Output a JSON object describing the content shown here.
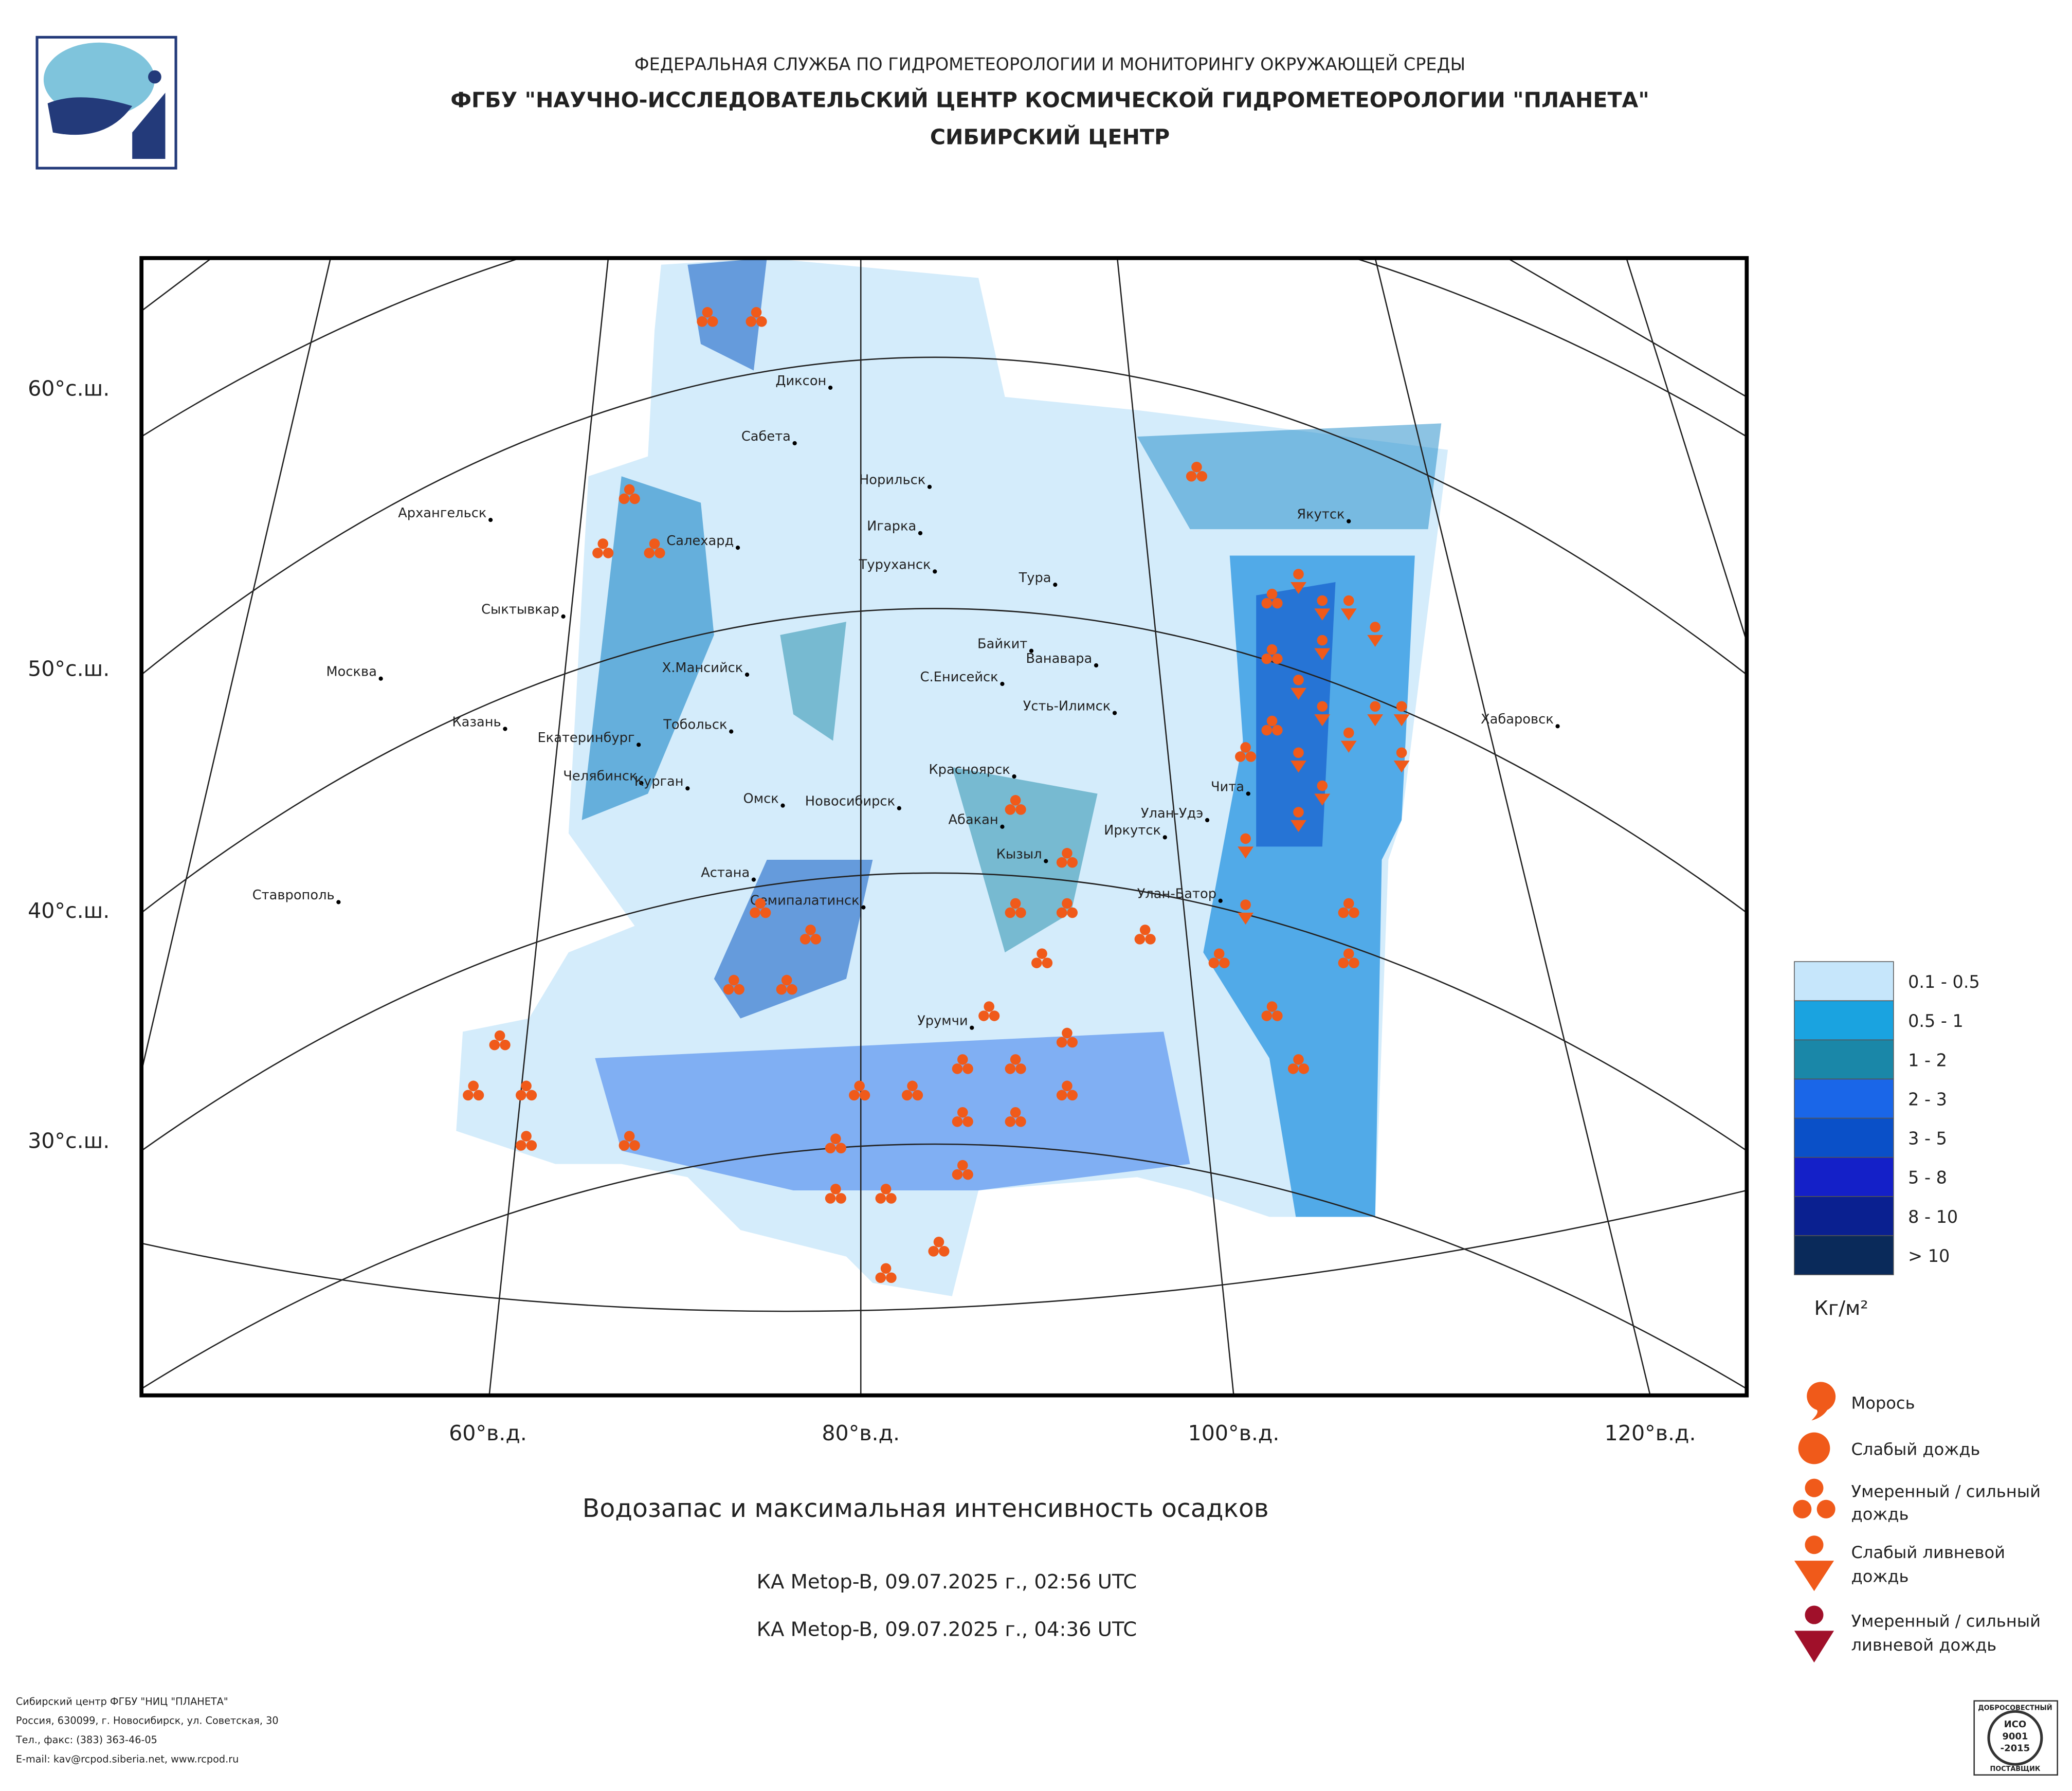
{
  "header": {
    "lines": [
      "ФЕДЕРАЛЬНАЯ СЛУЖБА ПО ГИДРОМЕТЕОРОЛОГИИ И МОНИТОРИНГУ ОКРУЖАЮЩЕЙ СРЕДЫ",
      "ФГБУ \"НАУЧНО-ИССЛЕДОВАТЕЛЬСКИЙ ЦЕНТР КОСМИЧЕСКОЙ ГИДРОМЕТЕОРОЛОГИИ \"ПЛАНЕТА\"",
      "СИБИРСКИЙ ЦЕНТР"
    ]
  },
  "map": {
    "lat_labels": [
      "60°с.ш.",
      "50°с.ш.",
      "40°с.ш.",
      "30°с.ш."
    ],
    "lon_labels": [
      "60°в.д.",
      "80°в.д.",
      "100°в.д.",
      "120°в.д."
    ],
    "cities": [
      "Диксон",
      "Сабета",
      "Норильск",
      "Игарка",
      "Туруханск",
      "Тура",
      "Архангельск",
      "Салехард",
      "Сыктывкар",
      "Байкит",
      "Ванавара",
      "Москва",
      "Х.Мансийск",
      "С.Енисейск",
      "Усть-Илимск",
      "Казань",
      "Тобольск",
      "Екатеринбург",
      "Челябинск",
      "Курган",
      "Омск",
      "Новосибирск",
      "Красноярск",
      "Абакан",
      "Иркутск",
      "Улан-Удэ",
      "Чита",
      "Кызыл",
      "Якутск",
      "Хабаровск",
      "Ставрополь",
      "Астана",
      "Семипалатинск",
      "Улан-Батор",
      "Урумчи"
    ]
  },
  "legend": {
    "classes": [
      "0.1 - 0.5",
      "0.5 - 1",
      "1 - 2",
      "2 - 3",
      "3 - 5",
      "5 - 8",
      "8 - 10",
      "> 10"
    ],
    "unit": "Кг/м²",
    "symbols": [
      [
        "Морось"
      ],
      [
        "Слабый дождь"
      ],
      [
        "Умеренный / сильный",
        "дождь"
      ],
      [
        "Слабый ливневой",
        "дождь"
      ],
      [
        "Умеренный / сильный",
        "ливневой дождь"
      ]
    ]
  },
  "title": "Водозапас и максимальная интенсивность осадков",
  "passes": [
    "КА Metop-B, 09.07.2025 г., 02:56 UTC",
    "КА Metop-B, 09.07.2025 г., 04:36 UTC"
  ],
  "footer": [
    "Сибирский центр ФГБУ \"НИЦ \"ПЛАНЕТА\"",
    "Россия, 630099, г. Новосибирск, ул. Советская, 30",
    "Тел., факс: (383) 363-46-05",
    "E-mail: kav@rcpod.siberia.net, www.rcpod.ru"
  ],
  "certificate": [
    "ДОБРОСОВЕСТНЫЙ",
    "ИСО",
    "9001",
    "-2015",
    "ПОСТАВЩИК"
  ]
}
